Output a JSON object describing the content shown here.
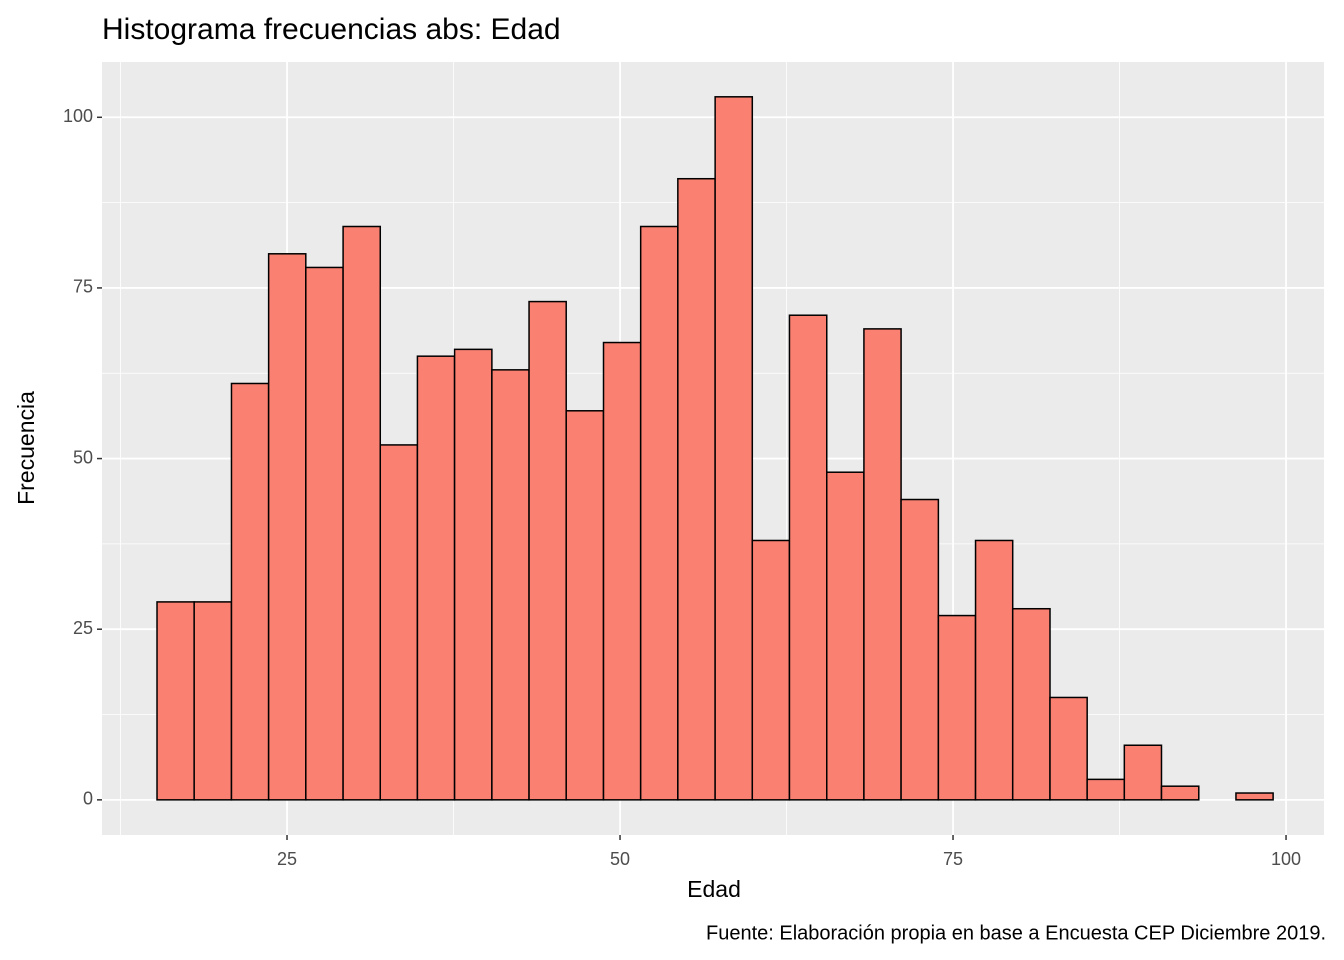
{
  "chart_data": {
    "type": "histogram",
    "title": "Histograma frecuencias abs: Edad",
    "x_label": "Edad",
    "y_label": "Frecuencia",
    "caption": "Fuente: Elaboración propia en base a Encuesta CEP Diciembre 2019.",
    "bins": [
      15.24,
      18.03,
      20.83,
      23.62,
      26.41,
      29.21,
      32.0,
      34.79,
      37.58,
      40.38,
      43.17,
      45.96,
      48.76,
      51.55,
      54.34,
      57.14,
      59.93,
      62.72,
      65.52,
      68.31,
      71.1,
      73.9,
      76.69,
      79.48,
      82.28,
      85.07,
      87.86,
      90.65,
      93.45,
      96.24,
      99.03
    ],
    "values": [
      29,
      29,
      61,
      80,
      78,
      84,
      52,
      65,
      66,
      63,
      73,
      57,
      67,
      84,
      91,
      103,
      38,
      71,
      48,
      69,
      44,
      27,
      38,
      28,
      15,
      3,
      8,
      2,
      0,
      1
    ],
    "color": "#fa8072",
    "edge_color": "#000000",
    "xlim": [
      11.11,
      102.85
    ],
    "ylim": [
      -5.15,
      108.1
    ],
    "xticks": [
      25,
      50,
      75,
      100
    ],
    "yticks": [
      0,
      25,
      50,
      75,
      100
    ],
    "grid": true
  }
}
